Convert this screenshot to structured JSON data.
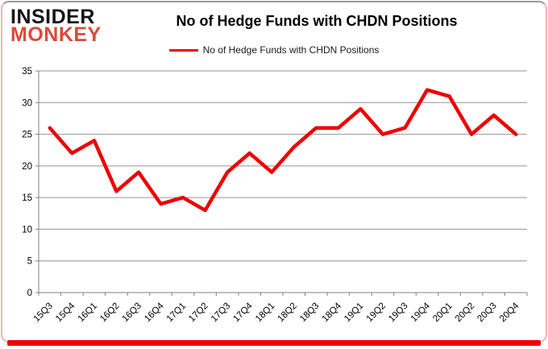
{
  "logo": {
    "line1": "INSIDER",
    "line2": "MONKEY"
  },
  "header": {
    "title": "No of Hedge Funds with CHDN Positions"
  },
  "legend": {
    "label": "No of Hedge Funds with CHDN Positions"
  },
  "colors": {
    "series": "#ee0000",
    "logo_black": "#151515",
    "logo_red": "#d84b3a",
    "grid": "#949494",
    "axis": "#808080",
    "tick_text": "#000000",
    "frame_red": "#ee0000"
  },
  "chart_data": {
    "type": "line",
    "title": "No of Hedge Funds with CHDN Positions",
    "categories": [
      "15Q3",
      "15Q4",
      "16Q1",
      "16Q2",
      "16Q3",
      "16Q4",
      "17Q1",
      "17Q2",
      "17Q3",
      "17Q4",
      "18Q1",
      "18Q2",
      "18Q3",
      "18Q4",
      "19Q1",
      "19Q2",
      "19Q3",
      "19Q4",
      "20Q1",
      "20Q2",
      "20Q3",
      "20Q4"
    ],
    "series": [
      {
        "name": "No of Hedge Funds with CHDN Positions",
        "color": "#ee0000",
        "values": [
          26,
          22,
          24,
          16,
          19,
          14,
          15,
          13,
          19,
          22,
          19,
          23,
          26,
          26,
          29,
          25,
          26,
          32,
          31,
          25,
          28,
          25
        ]
      }
    ],
    "xlabel": "",
    "ylabel": "",
    "ylim": [
      0,
      35
    ],
    "yticks": [
      0,
      5,
      10,
      15,
      20,
      25,
      30,
      35
    ],
    "grid": "horizontal",
    "legend_position": "top-center",
    "x_label_rotation": -45
  }
}
